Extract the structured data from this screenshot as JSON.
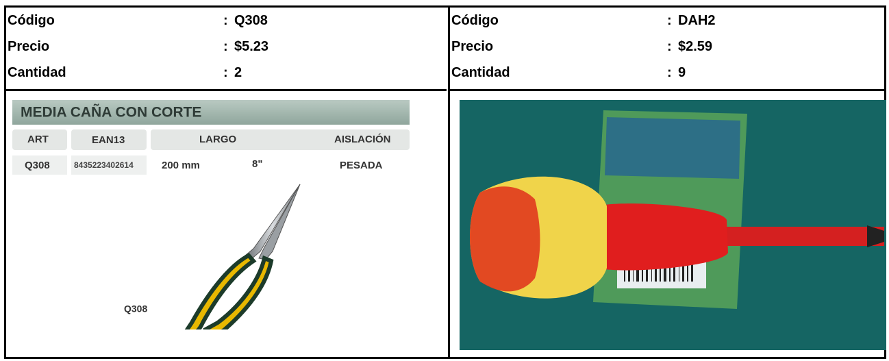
{
  "separator": ":",
  "cards": [
    {
      "fields": [
        {
          "label": "Código",
          "value": "Q308"
        },
        {
          "label": "Precio",
          "value": "$5.23"
        },
        {
          "label": "Cantidad",
          "value": 2
        }
      ],
      "catalog": {
        "title": "MEDIA CAÑA CON CORTE",
        "headers": [
          "ART",
          "EAN13",
          "LARGO",
          "AISLACIÓN"
        ],
        "row": [
          "Q308",
          "8435223402614",
          "200 mm",
          "8\"",
          "PESADA"
        ],
        "caption": "Q308"
      }
    },
    {
      "fields": [
        {
          "label": "Código",
          "value": "DAH2"
        },
        {
          "label": "Precio",
          "value": "$2.59"
        },
        {
          "label": "Cantidad",
          "value": 9
        }
      ]
    }
  ]
}
